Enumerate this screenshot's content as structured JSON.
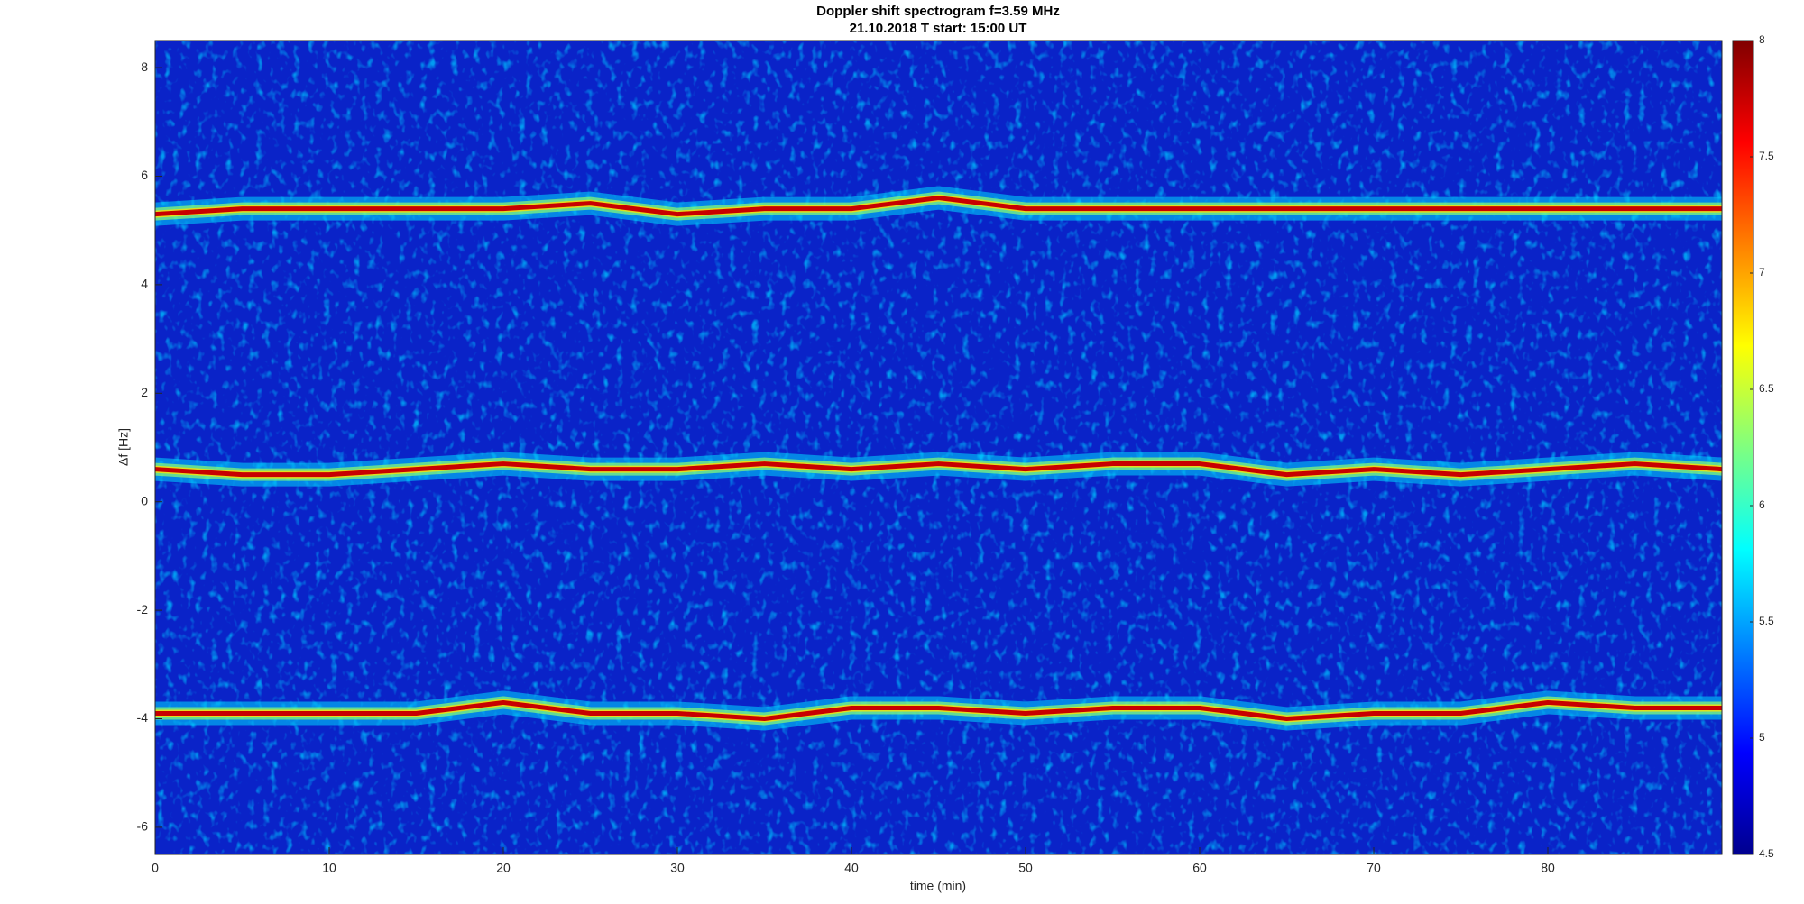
{
  "chart_data": {
    "type": "spectrogram",
    "title": "Doppler shift spectrogram f=3.59 MHz",
    "subtitle": "21.10.2018   T start: 15:00 UT",
    "x_label": "time (min)",
    "y_label": "Δf [Hz]",
    "x": [
      0,
      5,
      10,
      15,
      20,
      25,
      30,
      35,
      40,
      45,
      50,
      55,
      60,
      65,
      70,
      75,
      80,
      85,
      90
    ],
    "series": [
      {
        "color": "#c80000",
        "values": [
          5.3,
          5.4,
          5.4,
          5.4,
          5.4,
          5.5,
          5.3,
          5.4,
          5.4,
          5.6,
          5.4,
          5.4,
          5.4,
          5.4,
          5.4,
          5.4,
          5.4,
          5.4,
          5.4
        ]
      },
      {
        "color": "#c80000",
        "values": [
          0.6,
          0.5,
          0.5,
          0.6,
          0.7,
          0.6,
          0.6,
          0.7,
          0.6,
          0.7,
          0.6,
          0.7,
          0.7,
          0.5,
          0.6,
          0.5,
          0.6,
          0.7,
          0.6
        ]
      },
      {
        "color": "#c80000",
        "values": [
          -3.9,
          -3.9,
          -3.9,
          -3.9,
          -3.7,
          -3.9,
          -3.9,
          -4.0,
          -3.8,
          -3.8,
          -3.9,
          -3.8,
          -3.8,
          -4.0,
          -3.9,
          -3.9,
          -3.7,
          -3.8,
          -3.8
        ]
      }
    ],
    "xlim": [
      0,
      90
    ],
    "xticks": [
      0,
      10,
      20,
      30,
      40,
      50,
      60,
      70,
      80
    ],
    "ylim": [
      -6.5,
      8.5
    ],
    "yticks": [
      -6,
      -4,
      -2,
      0,
      2,
      4,
      6,
      8
    ],
    "clim": [
      4.5,
      8
    ],
    "cticks": [
      4.5,
      5,
      5.5,
      6,
      6.5,
      7,
      7.5,
      8
    ],
    "background_color": "#0a23c8",
    "colormap": "jet"
  }
}
